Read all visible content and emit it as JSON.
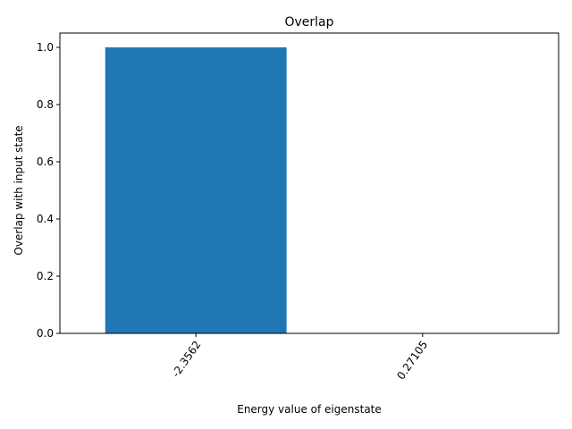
{
  "chart_data": {
    "type": "bar",
    "title": "Overlap",
    "xlabel": "Energy value of eigenstate",
    "ylabel": "Overlap with input state",
    "categories": [
      "-2.3562",
      "0.27105"
    ],
    "values": [
      1.0,
      0.0
    ],
    "ylim": [
      0,
      1.05
    ],
    "yticks": [
      "0.0",
      "0.2",
      "0.4",
      "0.6",
      "0.8",
      "1.0"
    ],
    "grid": false,
    "bar_color": "#1f77b4"
  }
}
